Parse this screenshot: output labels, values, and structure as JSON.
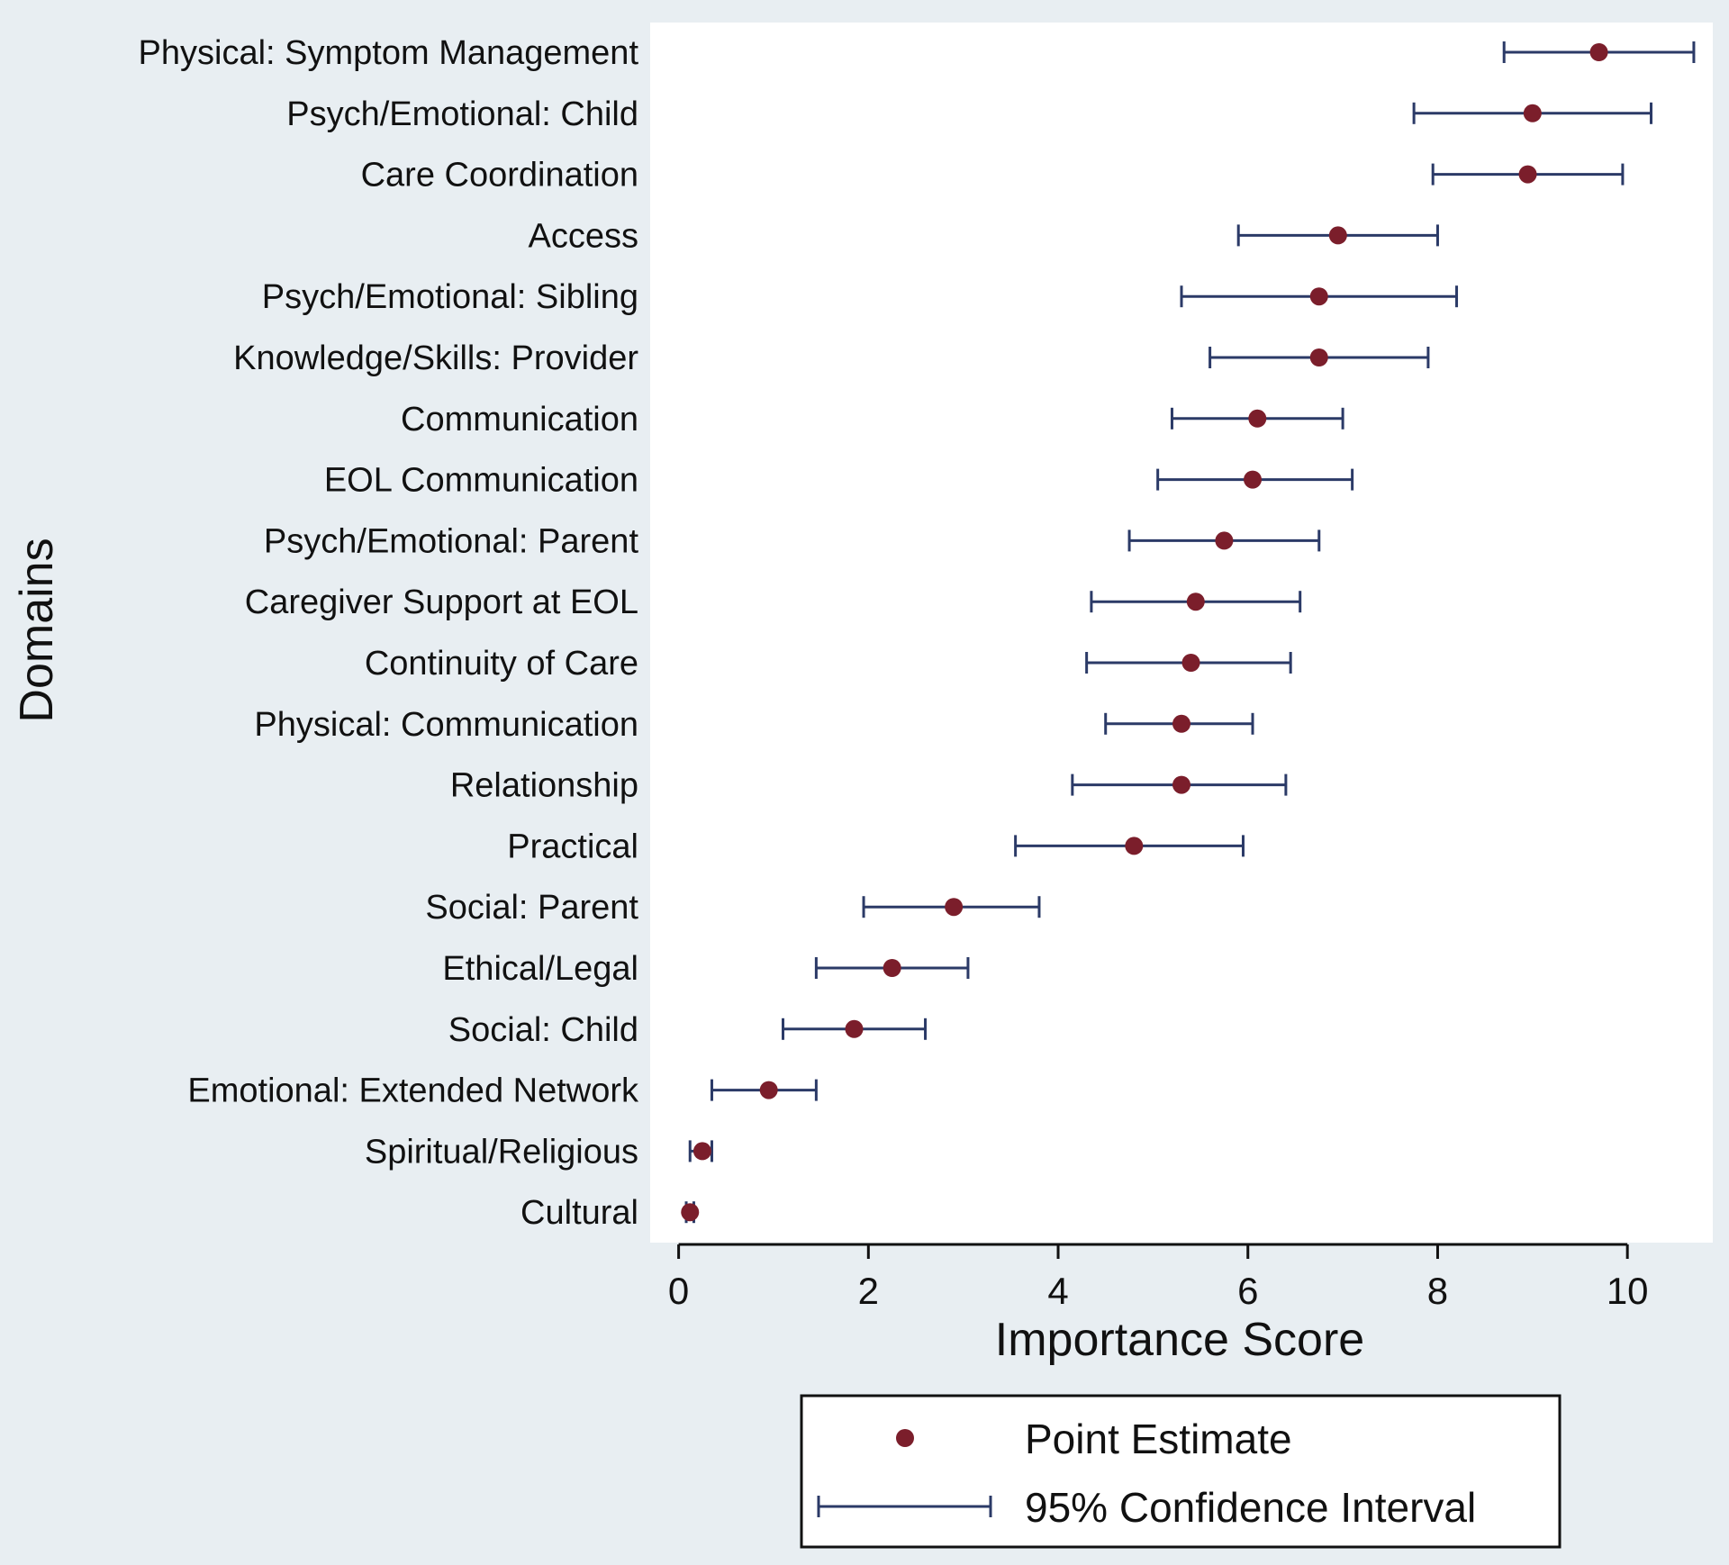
{
  "chart_data": {
    "type": "scatter",
    "subtype": "forest-plot",
    "xlabel": "Importance Score",
    "ylabel": "Domains",
    "xlim": [
      -0.3,
      10.9
    ],
    "xticks": [
      0,
      2,
      4,
      6,
      8,
      10
    ],
    "xtick_labels": [
      "0",
      "2",
      "4",
      "6",
      "8",
      "10"
    ],
    "grid": false,
    "legend_position": "bottom",
    "colors": {
      "point": "#7b1e2b",
      "interval": "#2b3a67",
      "plot_background": "#ffffff",
      "page_background": "#e8eef2"
    },
    "legend": [
      {
        "name": "Point Estimate",
        "marker": "dot"
      },
      {
        "name": "95% Confidence Interval",
        "marker": "interval"
      }
    ],
    "categories": [
      "Physical: Symptom Management",
      "Psych/Emotional: Child",
      "Care Coordination",
      "Access",
      "Psych/Emotional: Sibling",
      "Knowledge/Skills: Provider",
      "Communication",
      "EOL Communication",
      "Psych/Emotional: Parent",
      "Caregiver Support at EOL",
      "Continuity of Care",
      "Physical: Communication",
      "Relationship",
      "Practical",
      "Social: Parent",
      "Ethical/Legal",
      "Social: Child",
      "Emotional: Extended Network",
      "Spiritual/Religious",
      "Cultural"
    ],
    "series": [
      {
        "name": "Point Estimate",
        "values": [
          9.7,
          9.0,
          8.95,
          6.95,
          6.75,
          6.75,
          6.1,
          6.05,
          5.75,
          5.45,
          5.4,
          5.3,
          5.3,
          4.8,
          2.9,
          2.25,
          1.85,
          0.95,
          0.25,
          0.12
        ]
      },
      {
        "name": "95% Confidence Interval",
        "lower": [
          8.7,
          7.75,
          7.95,
          5.9,
          5.3,
          5.6,
          5.2,
          5.05,
          4.75,
          4.35,
          4.3,
          4.5,
          4.15,
          3.55,
          1.95,
          1.45,
          1.1,
          0.35,
          0.12,
          0.08
        ],
        "upper": [
          10.7,
          10.25,
          9.95,
          8.0,
          8.2,
          7.9,
          7.0,
          7.1,
          6.75,
          6.55,
          6.45,
          6.05,
          6.4,
          5.95,
          3.8,
          3.05,
          2.6,
          1.45,
          0.35,
          0.16
        ]
      }
    ]
  }
}
